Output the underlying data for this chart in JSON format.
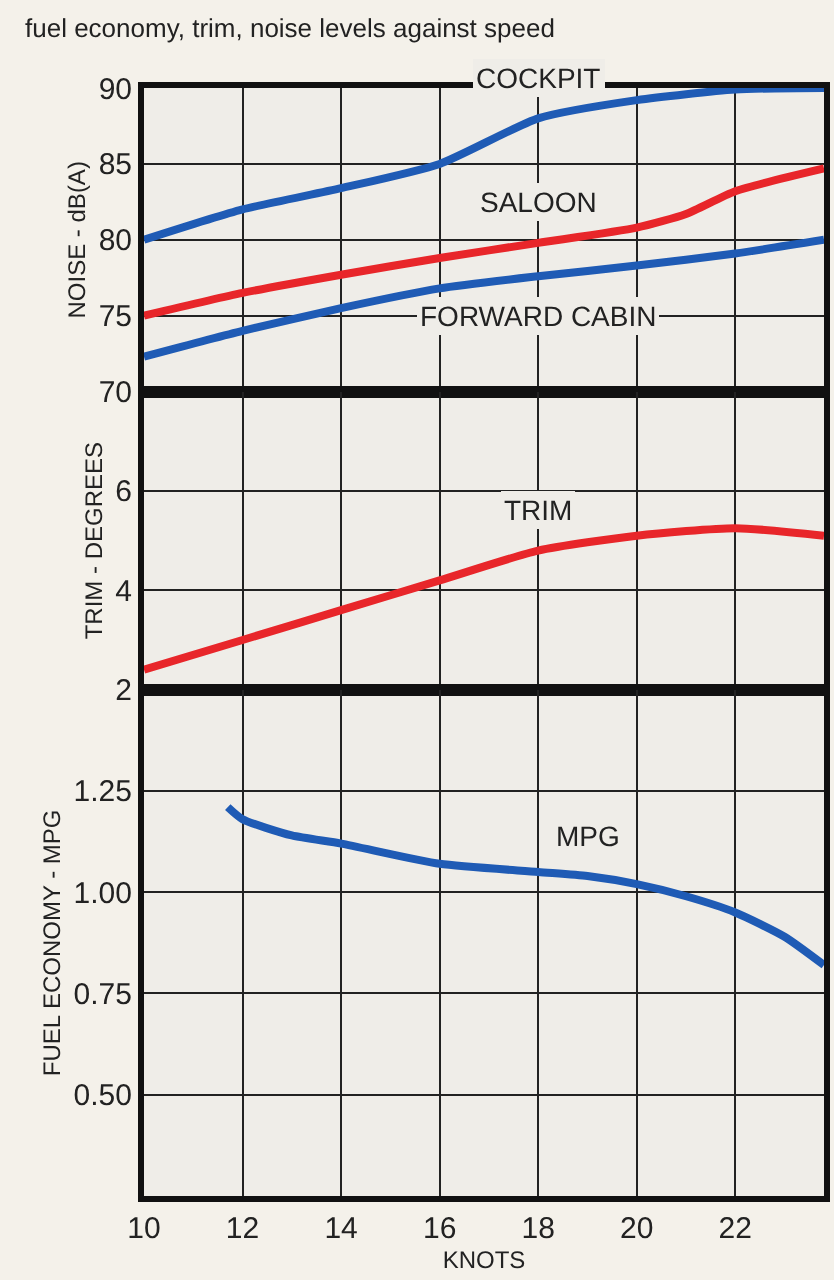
{
  "chart_data": [
    {
      "type": "line",
      "title": "fuel economy, trim, noise levels against speed",
      "ylabel": "NOISE - dB(A)",
      "xlim": [
        10,
        23.8
      ],
      "xticks": [
        10,
        12,
        14,
        16,
        18,
        20,
        22
      ],
      "ylim": [
        70,
        90
      ],
      "yticks": [
        70,
        75,
        80,
        85,
        90
      ],
      "grid": true,
      "tick_labels": "y",
      "line_style": "solid",
      "series": [
        {
          "name": "COCKPIT",
          "color": "#1f5bb5",
          "x": [
            10,
            12,
            14,
            16,
            18,
            20,
            22,
            23.8
          ],
          "values": [
            80,
            82,
            83.4,
            85,
            88,
            89.2,
            89.9,
            90
          ]
        },
        {
          "name": "SALOON",
          "color": "#e8262a",
          "x": [
            10,
            12,
            14,
            16,
            18,
            20,
            21,
            22,
            23.8
          ],
          "values": [
            75,
            76.5,
            77.7,
            78.8,
            79.8,
            80.8,
            81.7,
            83.2,
            84.7
          ]
        },
        {
          "name": "FORWARD CABIN",
          "color": "#1f5bb5",
          "x": [
            10,
            12,
            14,
            16,
            18,
            20,
            22,
            23.8
          ],
          "values": [
            72.3,
            74,
            75.5,
            76.8,
            77.6,
            78.3,
            79.1,
            80
          ]
        }
      ]
    },
    {
      "type": "line",
      "ylabel": "TRIM - DEGREES",
      "xlim": [
        10,
        23.8
      ],
      "xticks": [
        10,
        12,
        14,
        16,
        18,
        20,
        22
      ],
      "ylim": [
        2,
        8
      ],
      "yticks": [
        2,
        4,
        6
      ],
      "grid": true,
      "tick_labels": "y",
      "line_style": "solid",
      "series": [
        {
          "name": "TRIM",
          "color": "#e8262a",
          "x": [
            10,
            12,
            14,
            16,
            18,
            20,
            22,
            23.8
          ],
          "values": [
            2.4,
            3.0,
            3.6,
            4.2,
            4.8,
            5.1,
            5.25,
            5.1
          ]
        }
      ]
    },
    {
      "type": "line",
      "xlabel": "KNOTS",
      "ylabel": "FUEL ECONOMY - MPG",
      "xlim": [
        10,
        23.8
      ],
      "xticks": [
        10,
        12,
        14,
        16,
        18,
        20,
        22
      ],
      "ylim": [
        0.25,
        1.5
      ],
      "yticks": [
        {
          "value": 0.5,
          "label": "0.50"
        },
        0.75,
        {
          "value": 1,
          "label": "1.00"
        },
        1.25
      ],
      "grid": true,
      "line_style": "solid",
      "series": [
        {
          "name": "MPG",
          "color": "#1f5bb5",
          "x": [
            11.7,
            12,
            13,
            14,
            16,
            18,
            19,
            20,
            21,
            22,
            23,
            23.8
          ],
          "values": [
            1.21,
            1.18,
            1.14,
            1.12,
            1.07,
            1.05,
            1.04,
            1.02,
            0.99,
            0.95,
            0.89,
            0.82
          ]
        }
      ]
    }
  ]
}
